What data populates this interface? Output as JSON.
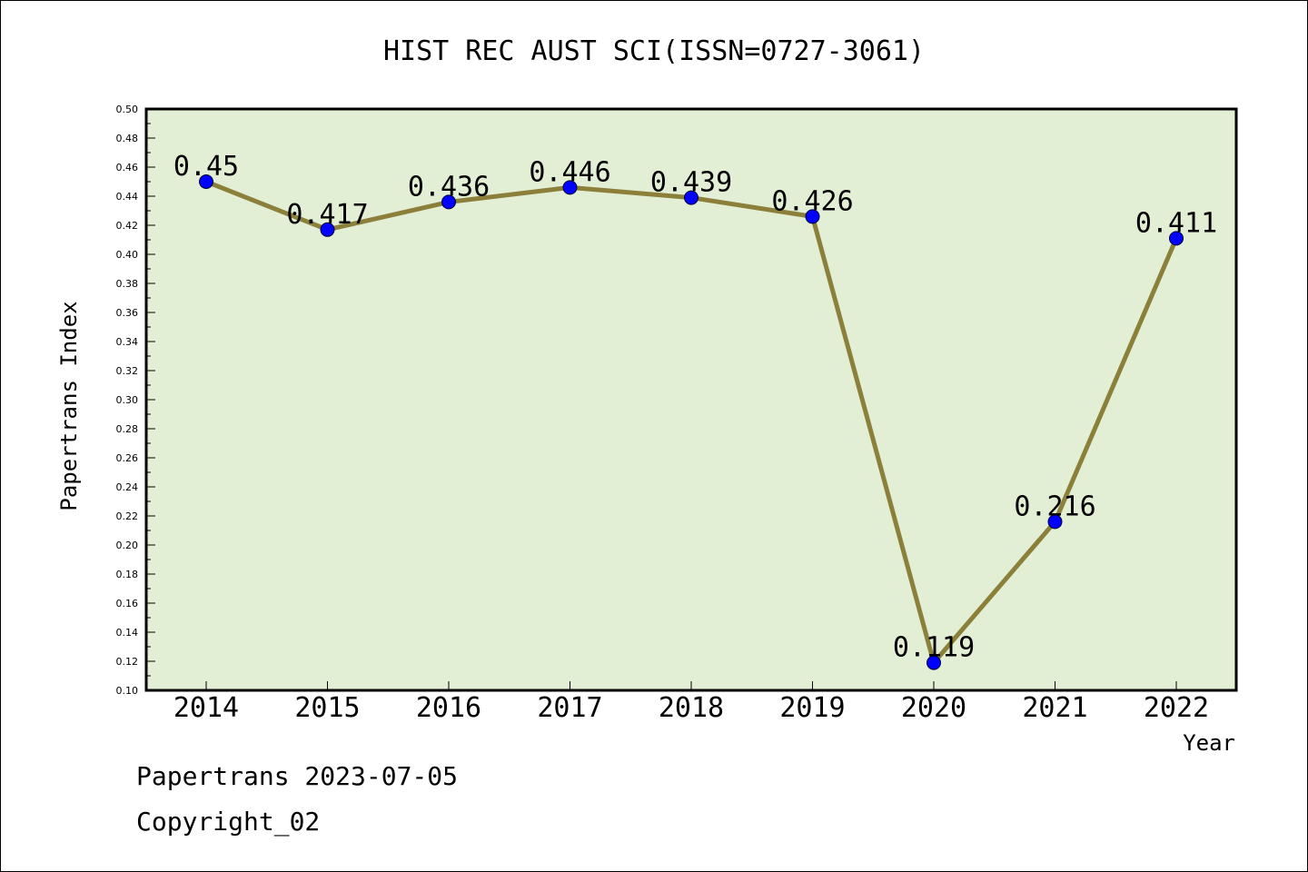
{
  "chart_data": {
    "type": "line",
    "title": "HIST REC AUST SCI(ISSN=0727-3061)",
    "xlabel": "Year",
    "ylabel": "Papertrans Index",
    "categories": [
      "2014",
      "2015",
      "2016",
      "2017",
      "2018",
      "2019",
      "2020",
      "2021",
      "2022"
    ],
    "values": [
      0.45,
      0.417,
      0.436,
      0.446,
      0.439,
      0.426,
      0.119,
      0.216,
      0.411
    ],
    "data_labels": [
      "0.45",
      "0.417",
      "0.436",
      "0.446",
      "0.439",
      "0.426",
      "0.119",
      "0.216",
      "0.411"
    ],
    "ylim": [
      0.1,
      0.5
    ],
    "yticks": [
      "0.10",
      "0.12",
      "0.14",
      "0.16",
      "0.18",
      "0.20",
      "0.22",
      "0.24",
      "0.26",
      "0.28",
      "0.30",
      "0.32",
      "0.34",
      "0.36",
      "0.38",
      "0.40",
      "0.42",
      "0.44",
      "0.46",
      "0.48",
      "0.50"
    ],
    "grid": false,
    "legend": "none",
    "colors": {
      "plot_background": "#e2efd5",
      "line": "#8c7f3a",
      "marker": "#0000ff"
    }
  },
  "footer": {
    "line1": "Papertrans 2023-07-05",
    "line2": "Copyright_02"
  }
}
